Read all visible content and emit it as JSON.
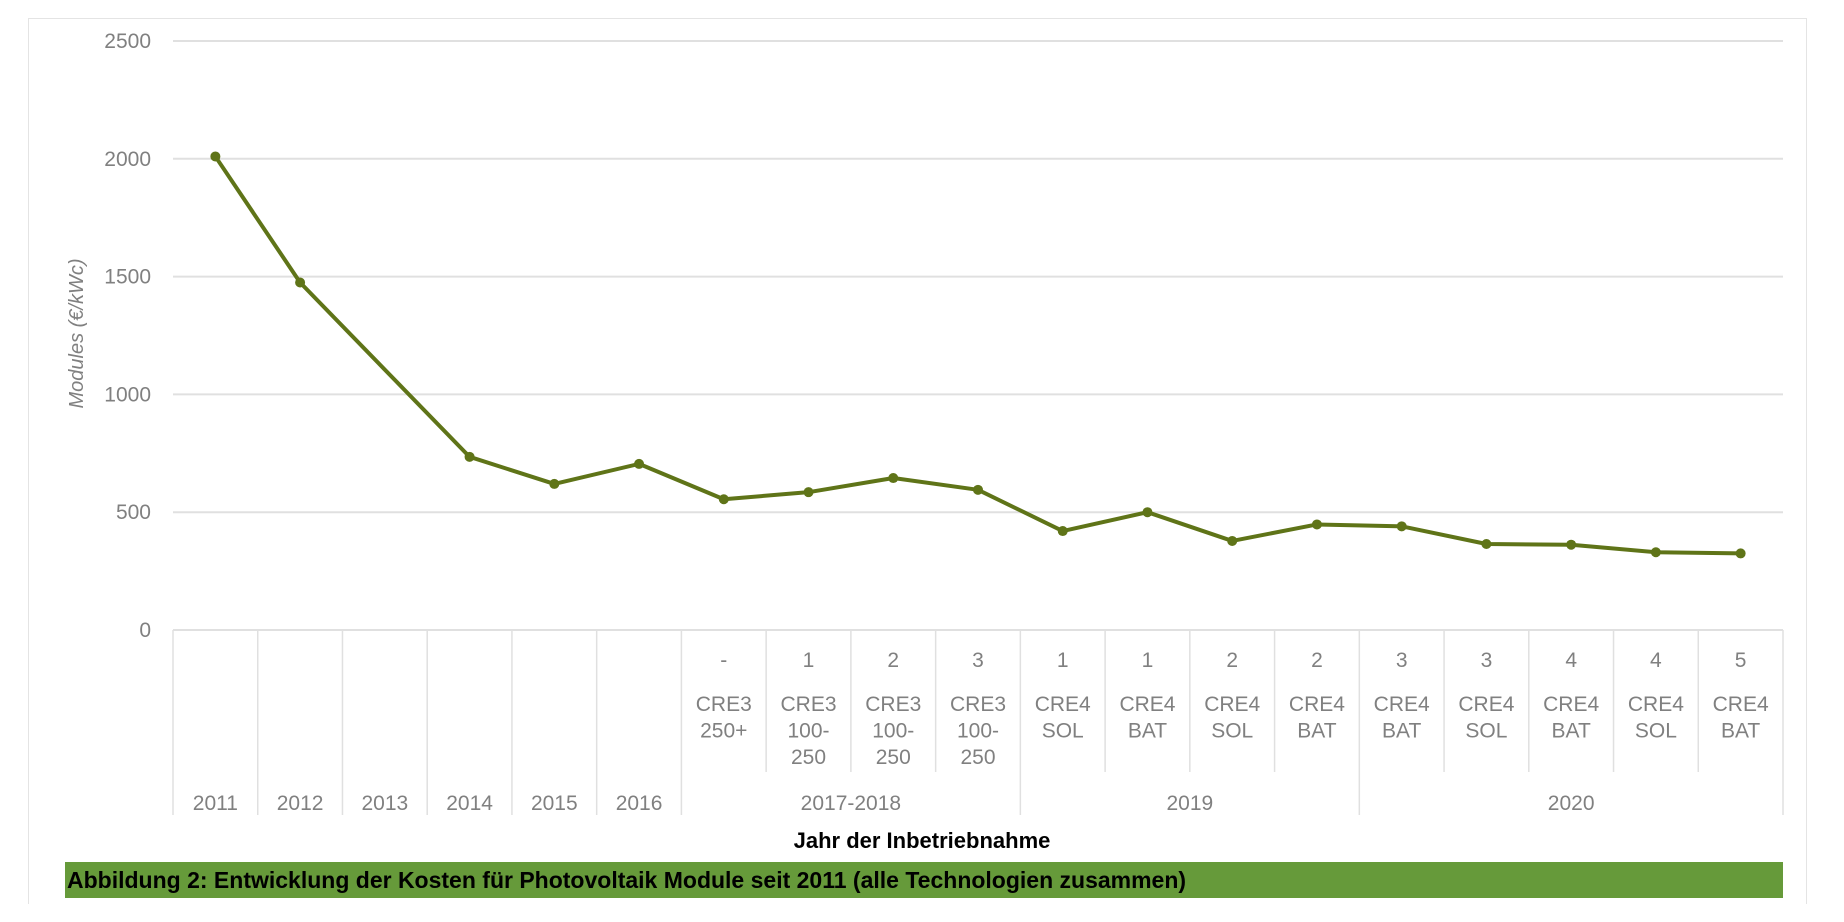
{
  "chart_data": {
    "type": "line",
    "ylabel": "Modules (€/kWc)",
    "xlabel": "Jahr der Inbetriebnahme",
    "ylim": [
      0,
      2500
    ],
    "yticks": [
      0,
      500,
      1000,
      1500,
      2000,
      2500
    ],
    "grid": true,
    "categories": [
      {
        "top": "",
        "mid": [],
        "group": "2011"
      },
      {
        "top": "",
        "mid": [],
        "group": "2012"
      },
      {
        "top": "",
        "mid": [],
        "group": "2013"
      },
      {
        "top": "",
        "mid": [],
        "group": "2014"
      },
      {
        "top": "",
        "mid": [],
        "group": "2015"
      },
      {
        "top": "",
        "mid": [],
        "group": "2016"
      },
      {
        "top": "-",
        "mid": [
          "CRE3",
          "250+"
        ],
        "group": "2017-2018"
      },
      {
        "top": "1",
        "mid": [
          "CRE3",
          "100-",
          "250"
        ],
        "group": "2017-2018"
      },
      {
        "top": "2",
        "mid": [
          "CRE3",
          "100-",
          "250"
        ],
        "group": "2017-2018"
      },
      {
        "top": "3",
        "mid": [
          "CRE3",
          "100-",
          "250"
        ],
        "group": "2017-2018"
      },
      {
        "top": "1",
        "mid": [
          "CRE4",
          "SOL"
        ],
        "group": "2019"
      },
      {
        "top": "1",
        "mid": [
          "CRE4",
          "BAT"
        ],
        "group": "2019"
      },
      {
        "top": "2",
        "mid": [
          "CRE4",
          "SOL"
        ],
        "group": "2019"
      },
      {
        "top": "2",
        "mid": [
          "CRE4",
          "BAT"
        ],
        "group": "2019"
      },
      {
        "top": "3",
        "mid": [
          "CRE4",
          "BAT"
        ],
        "group": "2020"
      },
      {
        "top": "3",
        "mid": [
          "CRE4",
          "SOL"
        ],
        "group": "2020"
      },
      {
        "top": "4",
        "mid": [
          "CRE4",
          "BAT"
        ],
        "group": "2020"
      },
      {
        "top": "4",
        "mid": [
          "CRE4",
          "SOL"
        ],
        "group": "2020"
      },
      {
        "top": "5",
        "mid": [
          "CRE4",
          "BAT"
        ],
        "group": "2020"
      }
    ],
    "series": [
      {
        "name": "Modules",
        "color": "#5f7418",
        "values": [
          2010,
          1475,
          null,
          735,
          620,
          705,
          555,
          585,
          645,
          595,
          420,
          500,
          378,
          448,
          440,
          365,
          362,
          330,
          325
        ]
      }
    ]
  },
  "caption": {
    "prefix": "Abbildung 2",
    "text": ": Entwicklung der Kosten für Photovoltaik Module seit 2011 (alle Technologien zusammen)"
  },
  "colors": {
    "caption_bg": "#669a3a",
    "grid": "#e0e0e0"
  }
}
